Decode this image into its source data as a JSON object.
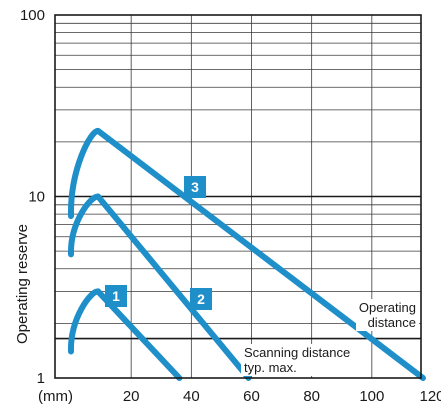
{
  "chart_data": {
    "type": "line",
    "ylabel": "Operating reserve",
    "y_scale": "log",
    "ylim": [
      1,
      100
    ],
    "xlim": [
      0,
      120
    ],
    "x_unit_label": "(mm)",
    "x_ticks": [
      20,
      40,
      60,
      80,
      100,
      120
    ],
    "y_ticks": [
      1,
      10,
      100
    ],
    "y_tick_labels": [
      "1",
      "10",
      "100"
    ],
    "grid": true,
    "reference_line": {
      "y": 1.65
    },
    "annotations": {
      "operating_distance": [
        "Operating",
        "distance"
      ],
      "scanning_distance": [
        "Scanning distance",
        "typ. max."
      ]
    },
    "series": [
      {
        "label": "1",
        "color": "#1e8fc9",
        "x": [
          0,
          9,
          36
        ],
        "y": [
          1.4,
          3.0,
          1.0
        ]
      },
      {
        "label": "2",
        "color": "#1e8fc9",
        "x": [
          0,
          9,
          59
        ],
        "y": [
          4.8,
          10.0,
          1.0
        ]
      },
      {
        "label": "3",
        "color": "#1e8fc9",
        "x": [
          0,
          9,
          117
        ],
        "y": [
          7.8,
          23.0,
          1.0
        ]
      }
    ]
  }
}
